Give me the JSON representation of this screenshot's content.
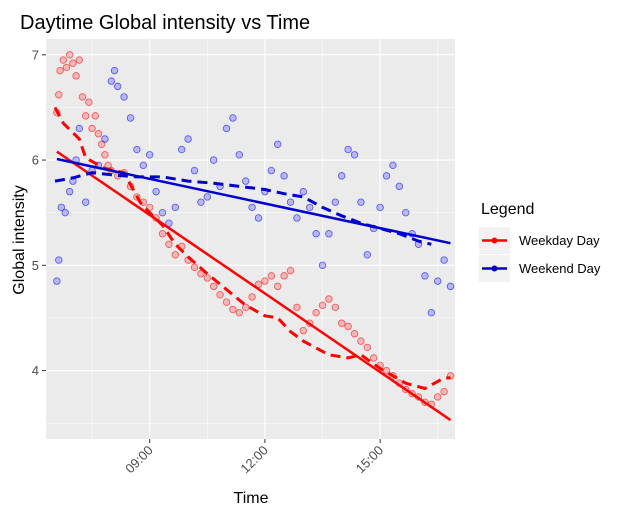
{
  "chart_data": {
    "type": "scatter",
    "title": "Daytime Global intensity vs Time",
    "xlabel": "Time",
    "ylabel": "Global intensity",
    "x_ticks": [
      "09:00",
      "12:00",
      "15:00"
    ],
    "x_tick_hours": [
      9,
      12,
      15
    ],
    "y_ticks": [
      4,
      5,
      6,
      7
    ],
    "xlim_hours": [
      6.3,
      16.95
    ],
    "ylim": [
      3.35,
      7.15
    ],
    "grid": true,
    "legend": {
      "title": "Legend",
      "position": "right",
      "entries": [
        {
          "label": "Weekday Day",
          "color": "#ff0000"
        },
        {
          "label": "Weekend Day",
          "color": "#0000ff"
        }
      ]
    },
    "series": [
      {
        "name": "Weekday Day",
        "color": "#ff0000",
        "trend_curve": [
          [
            "06:32",
            6.5
          ],
          [
            "06:45",
            6.35
          ],
          [
            "07:10",
            6.2
          ],
          [
            "07:20",
            6.02
          ],
          [
            "07:50",
            5.92
          ],
          [
            "08:20",
            5.88
          ],
          [
            "08:45",
            5.6
          ],
          [
            "09:00",
            5.5
          ],
          [
            "09:20",
            5.38
          ],
          [
            "09:40",
            5.2
          ],
          [
            "10:00",
            5.08
          ],
          [
            "10:30",
            4.92
          ],
          [
            "10:50",
            4.82
          ],
          [
            "11:30",
            4.62
          ],
          [
            "12:00",
            4.52
          ],
          [
            "12:20",
            4.5
          ],
          [
            "12:40",
            4.37
          ],
          [
            "13:00",
            4.28
          ],
          [
            "13:40",
            4.15
          ],
          [
            "14:10",
            4.12
          ],
          [
            "14:30",
            4.15
          ],
          [
            "15:00",
            4.02
          ],
          [
            "15:40",
            3.88
          ],
          [
            "16:10",
            3.83
          ],
          [
            "16:40",
            3.93
          ],
          [
            "16:50",
            3.93
          ]
        ],
        "linear_fit": [
          [
            "06:35",
            6.08
          ],
          [
            "16:50",
            3.53
          ]
        ],
        "points": [
          [
            "06:35",
            6.45
          ],
          [
            "06:38",
            6.62
          ],
          [
            "06:40",
            6.85
          ],
          [
            "06:45",
            6.95
          ],
          [
            "06:50",
            6.88
          ],
          [
            "06:55",
            7.0
          ],
          [
            "07:00",
            6.92
          ],
          [
            "07:05",
            6.8
          ],
          [
            "07:10",
            6.95
          ],
          [
            "07:15",
            6.6
          ],
          [
            "07:20",
            6.42
          ],
          [
            "07:25",
            6.55
          ],
          [
            "07:30",
            6.3
          ],
          [
            "07:35",
            6.42
          ],
          [
            "07:40",
            6.25
          ],
          [
            "07:45",
            6.15
          ],
          [
            "07:50",
            6.05
          ],
          [
            "07:55",
            5.95
          ],
          [
            "08:00",
            5.9
          ],
          [
            "08:10",
            5.85
          ],
          [
            "08:20",
            5.88
          ],
          [
            "08:30",
            5.75
          ],
          [
            "08:40",
            5.65
          ],
          [
            "08:50",
            5.6
          ],
          [
            "09:00",
            5.55
          ],
          [
            "09:10",
            5.45
          ],
          [
            "09:20",
            5.3
          ],
          [
            "09:30",
            5.2
          ],
          [
            "09:40",
            5.1
          ],
          [
            "09:50",
            5.18
          ],
          [
            "10:00",
            5.05
          ],
          [
            "10:10",
            4.98
          ],
          [
            "10:20",
            4.92
          ],
          [
            "10:30",
            4.88
          ],
          [
            "10:40",
            4.8
          ],
          [
            "10:50",
            4.72
          ],
          [
            "11:00",
            4.65
          ],
          [
            "11:10",
            4.58
          ],
          [
            "11:20",
            4.55
          ],
          [
            "11:30",
            4.6
          ],
          [
            "11:40",
            4.7
          ],
          [
            "11:50",
            4.82
          ],
          [
            "12:00",
            4.85
          ],
          [
            "12:10",
            4.9
          ],
          [
            "12:20",
            4.8
          ],
          [
            "12:30",
            4.9
          ],
          [
            "12:40",
            4.95
          ],
          [
            "12:50",
            4.6
          ],
          [
            "13:00",
            4.38
          ],
          [
            "13:10",
            4.45
          ],
          [
            "13:20",
            4.55
          ],
          [
            "13:30",
            4.62
          ],
          [
            "13:40",
            4.68
          ],
          [
            "13:50",
            4.6
          ],
          [
            "14:00",
            4.45
          ],
          [
            "14:10",
            4.42
          ],
          [
            "14:20",
            4.35
          ],
          [
            "14:30",
            4.28
          ],
          [
            "14:40",
            4.22
          ],
          [
            "14:50",
            4.12
          ],
          [
            "15:00",
            4.05
          ],
          [
            "15:10",
            4.0
          ],
          [
            "15:20",
            3.95
          ],
          [
            "15:30",
            3.88
          ],
          [
            "15:40",
            3.82
          ],
          [
            "15:50",
            3.78
          ],
          [
            "16:00",
            3.75
          ],
          [
            "16:10",
            3.7
          ],
          [
            "16:20",
            3.68
          ],
          [
            "16:30",
            3.75
          ],
          [
            "16:40",
            3.8
          ],
          [
            "16:50",
            3.95
          ]
        ]
      },
      {
        "name": "Weekend Day",
        "color": "#0000ff",
        "trend_curve": [
          [
            "06:32",
            5.8
          ],
          [
            "07:00",
            5.83
          ],
          [
            "07:30",
            5.88
          ],
          [
            "08:00",
            5.86
          ],
          [
            "08:40",
            5.84
          ],
          [
            "09:20",
            5.84
          ],
          [
            "10:00",
            5.8
          ],
          [
            "10:40",
            5.78
          ],
          [
            "11:20",
            5.75
          ],
          [
            "12:00",
            5.72
          ],
          [
            "12:30",
            5.68
          ],
          [
            "13:00",
            5.65
          ],
          [
            "13:30",
            5.55
          ],
          [
            "14:00",
            5.47
          ],
          [
            "14:30",
            5.4
          ],
          [
            "15:00",
            5.35
          ],
          [
            "15:30",
            5.3
          ],
          [
            "16:00",
            5.23
          ],
          [
            "16:20",
            5.2
          ]
        ],
        "linear_fit": [
          [
            "06:35",
            6.01
          ],
          [
            "16:50",
            5.21
          ]
        ],
        "points": [
          [
            "06:35",
            4.85
          ],
          [
            "06:38",
            5.05
          ],
          [
            "06:42",
            5.55
          ],
          [
            "06:48",
            5.5
          ],
          [
            "06:55",
            5.7
          ],
          [
            "07:00",
            5.8
          ],
          [
            "07:05",
            6.0
          ],
          [
            "07:10",
            6.3
          ],
          [
            "07:20",
            5.6
          ],
          [
            "07:30",
            5.9
          ],
          [
            "07:40",
            5.95
          ],
          [
            "07:50",
            6.2
          ],
          [
            "08:00",
            6.75
          ],
          [
            "08:05",
            6.85
          ],
          [
            "08:10",
            6.7
          ],
          [
            "08:20",
            6.6
          ],
          [
            "08:30",
            6.4
          ],
          [
            "08:40",
            6.1
          ],
          [
            "08:50",
            5.95
          ],
          [
            "09:00",
            6.05
          ],
          [
            "09:10",
            5.7
          ],
          [
            "09:20",
            5.5
          ],
          [
            "09:30",
            5.4
          ],
          [
            "09:40",
            5.55
          ],
          [
            "09:50",
            6.1
          ],
          [
            "10:00",
            6.2
          ],
          [
            "10:10",
            5.9
          ],
          [
            "10:20",
            5.6
          ],
          [
            "10:30",
            5.65
          ],
          [
            "10:40",
            6.0
          ],
          [
            "10:50",
            5.75
          ],
          [
            "11:00",
            6.3
          ],
          [
            "11:10",
            6.4
          ],
          [
            "11:20",
            6.05
          ],
          [
            "11:30",
            5.8
          ],
          [
            "11:40",
            5.55
          ],
          [
            "11:50",
            5.45
          ],
          [
            "12:00",
            5.7
          ],
          [
            "12:10",
            5.9
          ],
          [
            "12:20",
            6.15
          ],
          [
            "12:30",
            5.85
          ],
          [
            "12:40",
            5.6
          ],
          [
            "12:50",
            5.45
          ],
          [
            "13:00",
            5.7
          ],
          [
            "13:10",
            5.55
          ],
          [
            "13:20",
            5.3
          ],
          [
            "13:30",
            5.0
          ],
          [
            "13:40",
            5.3
          ],
          [
            "13:50",
            5.6
          ],
          [
            "14:00",
            5.85
          ],
          [
            "14:10",
            6.1
          ],
          [
            "14:20",
            6.05
          ],
          [
            "14:30",
            5.6
          ],
          [
            "14:40",
            5.1
          ],
          [
            "14:50",
            5.35
          ],
          [
            "15:00",
            5.55
          ],
          [
            "15:10",
            5.85
          ],
          [
            "15:20",
            5.95
          ],
          [
            "15:30",
            5.75
          ],
          [
            "15:40",
            5.5
          ],
          [
            "15:50",
            5.3
          ],
          [
            "16:00",
            5.2
          ],
          [
            "16:10",
            4.9
          ],
          [
            "16:20",
            4.55
          ],
          [
            "16:30",
            4.85
          ],
          [
            "16:40",
            5.05
          ],
          [
            "16:50",
            4.8
          ]
        ]
      }
    ]
  }
}
